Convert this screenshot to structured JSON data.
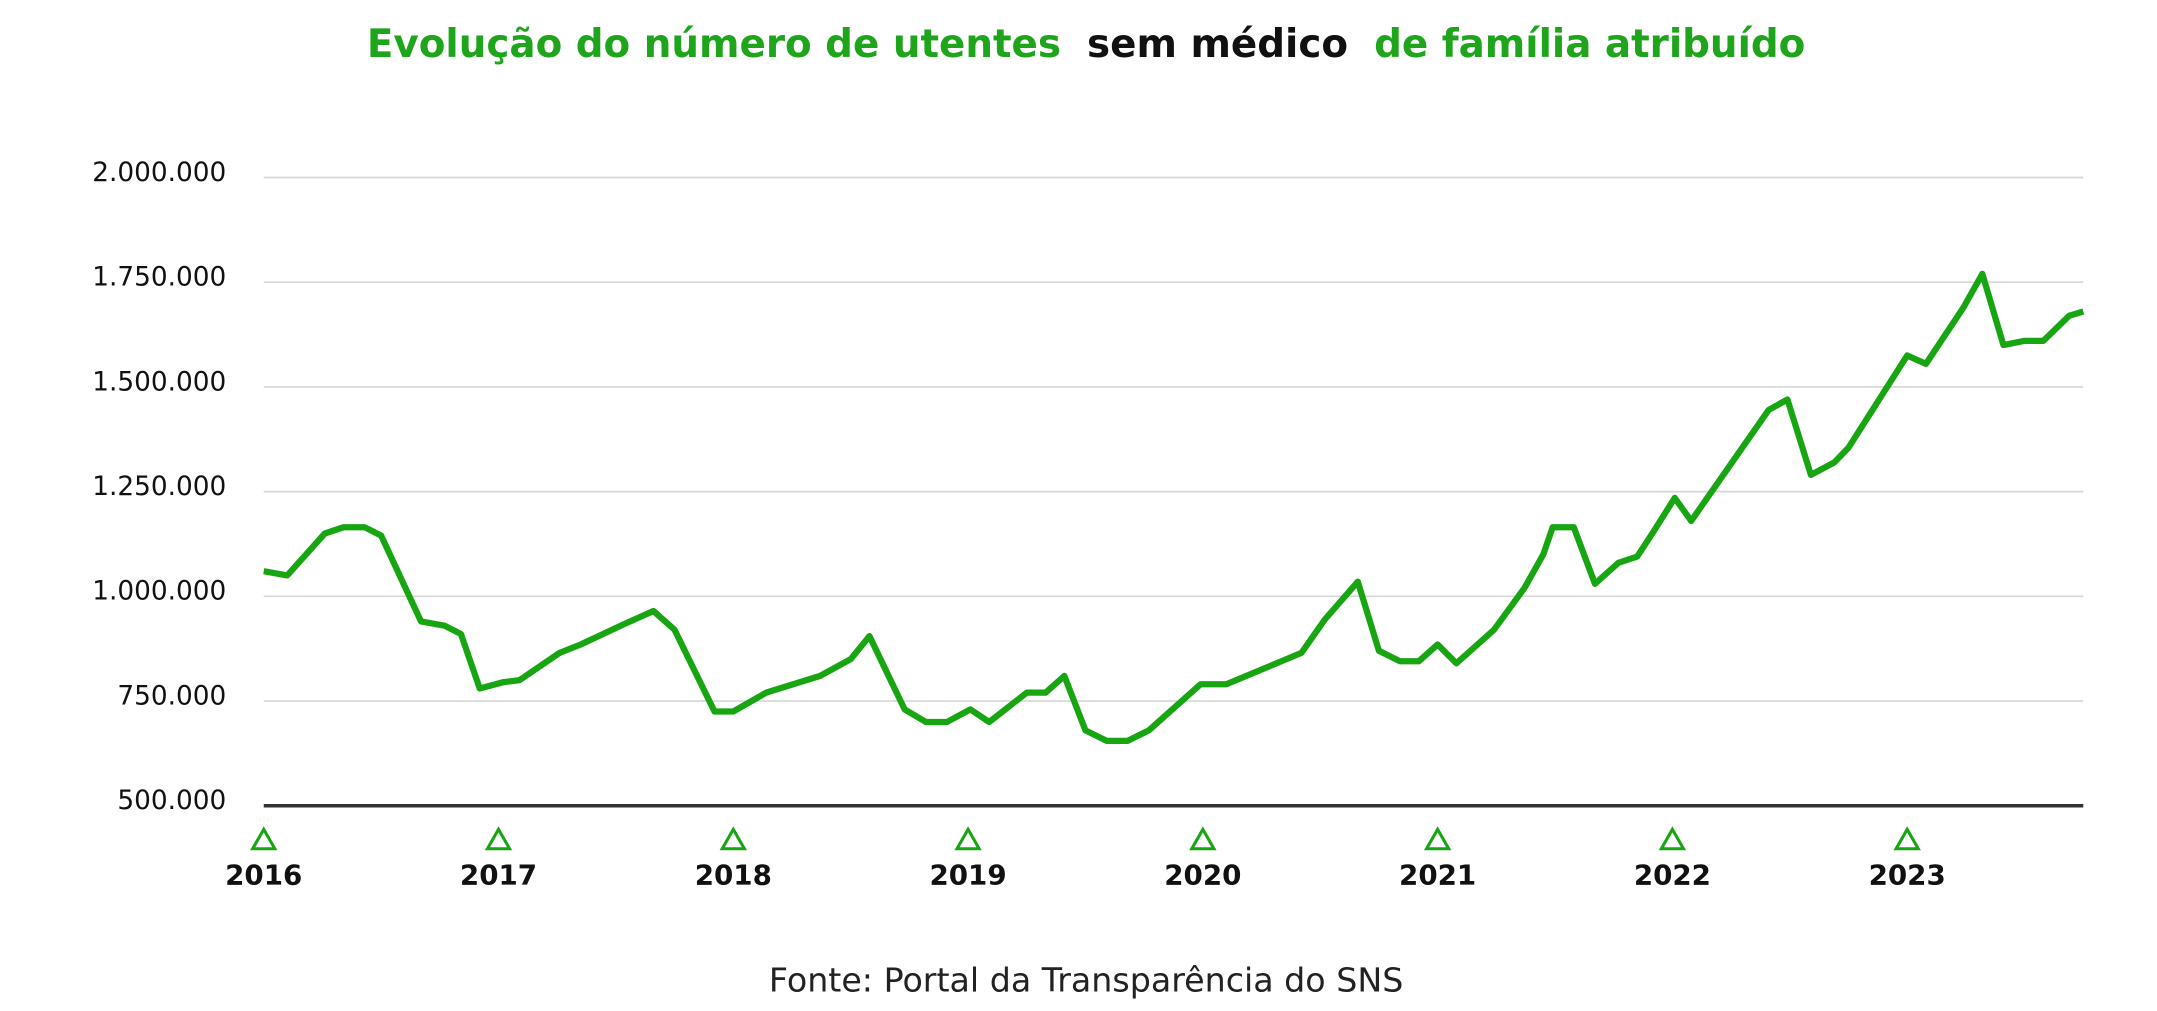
{
  "chart_data": {
    "type": "line",
    "title": [
      "Evolução do número de utentes",
      "sem médico",
      "de família atribuído"
    ],
    "title_colors": [
      "#1fa51b",
      "#111111",
      "#1fa51b"
    ],
    "source": "Fonte: Portal da Transparência do SNS",
    "color": "#17a612",
    "x": [
      2016.0,
      2016.1,
      2016.26,
      2016.34,
      2016.43,
      2016.5,
      2016.67,
      2016.77,
      2016.84,
      2016.92,
      2017.02,
      2017.09,
      2017.26,
      2017.35,
      2017.54,
      2017.66,
      2017.75,
      2017.92,
      2018.0,
      2018.14,
      2018.37,
      2018.5,
      2018.58,
      2018.73,
      2018.82,
      2018.91,
      2019.01,
      2019.09,
      2019.25,
      2019.33,
      2019.41,
      2019.5,
      2019.59,
      2019.68,
      2019.77,
      2019.99,
      2020.1,
      2020.42,
      2020.52,
      2020.66,
      2020.75,
      2020.84,
      2020.92,
      2021.0,
      2021.08,
      2021.24,
      2021.37,
      2021.45,
      2021.49,
      2021.58,
      2021.67,
      2021.77,
      2021.85,
      2021.92,
      2022.01,
      2022.08,
      2022.41,
      2022.49,
      2022.59,
      2022.69,
      2022.75,
      2023.0,
      2023.08,
      2023.24,
      2023.32,
      2023.41,
      2023.5,
      2023.58,
      2023.69,
      2023.75
    ],
    "values": [
      1060000,
      1050000,
      1150000,
      1165000,
      1165000,
      1145000,
      940000,
      930000,
      910000,
      780000,
      795000,
      800000,
      865000,
      885000,
      935000,
      965000,
      920000,
      725000,
      725000,
      770000,
      810000,
      850000,
      905000,
      730000,
      700000,
      700000,
      730000,
      700000,
      770000,
      770000,
      810000,
      680000,
      655000,
      655000,
      680000,
      790000,
      790000,
      865000,
      945000,
      1035000,
      870000,
      845000,
      845000,
      885000,
      840000,
      920000,
      1020000,
      1100000,
      1165000,
      1165000,
      1030000,
      1080000,
      1095000,
      1155000,
      1235000,
      1180000,
      1445000,
      1470000,
      1290000,
      1320000,
      1355000,
      1575000,
      1555000,
      1690000,
      1770000,
      1600000,
      1610000,
      1610000,
      1670000,
      1680000
    ],
    "xlim": [
      2016,
      2023.75
    ],
    "xticks": [
      2016,
      2017,
      2018,
      2019,
      2020,
      2021,
      2022,
      2023
    ],
    "ylim": [
      500000,
      2000000
    ],
    "yticks": [
      {
        "value": 500000,
        "label": "500.000"
      },
      {
        "value": 750000,
        "label": "750.000"
      },
      {
        "value": 1000000,
        "label": "1.000.000"
      },
      {
        "value": 1250000,
        "label": "1.250.000"
      },
      {
        "value": 1500000,
        "label": "1.500.000"
      },
      {
        "value": 1750000,
        "label": "1.750.000"
      },
      {
        "value": 2000000,
        "label": "2.000.000"
      }
    ],
    "grid": true
  }
}
